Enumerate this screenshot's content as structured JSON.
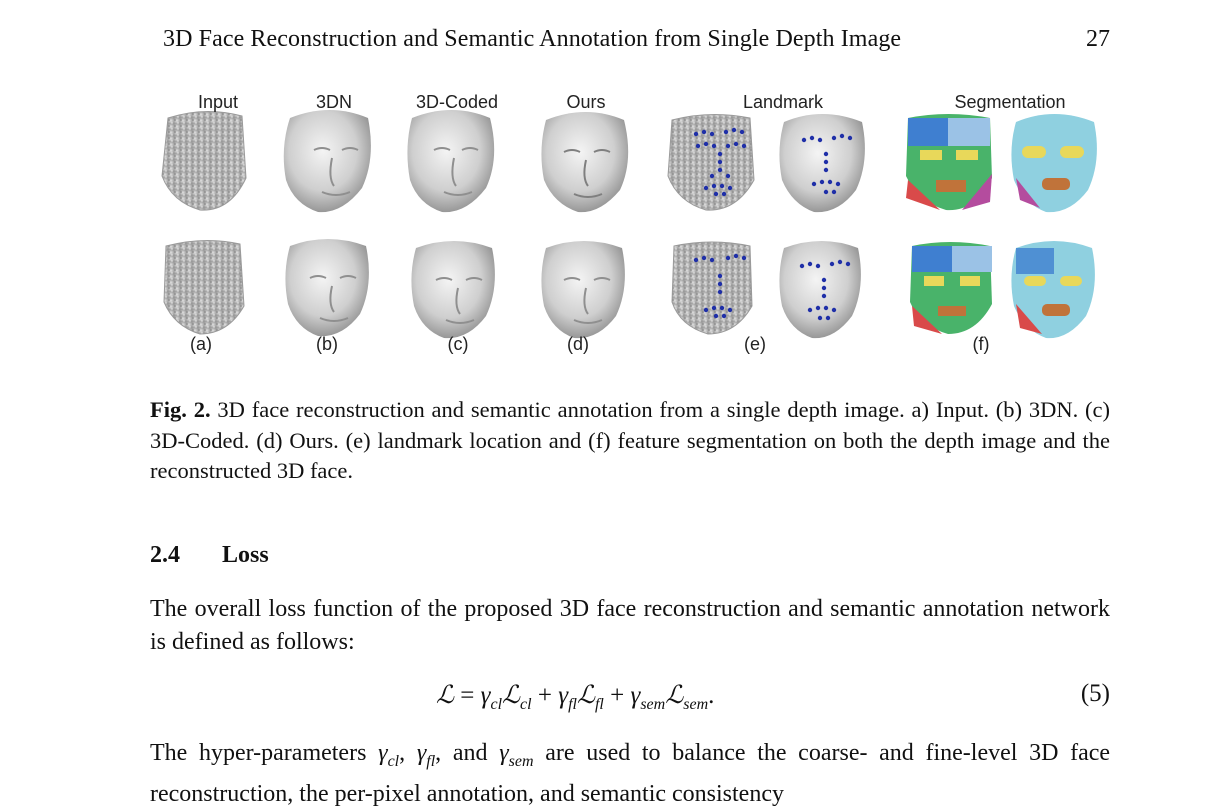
{
  "header": {
    "running_title": "3D Face Reconstruction and Semantic Annotation from Single Depth Image",
    "page_number": "27"
  },
  "figure": {
    "column_headers": [
      "Input",
      "3DN",
      "3D-Coded",
      "Ours",
      "Landmark",
      "Segmentation"
    ],
    "sub_labels": [
      "(a)",
      "(b)",
      "(c)",
      "(d)",
      "(e)",
      "(f)"
    ],
    "colors": {
      "face_gray": "#cfcfcf",
      "face_shadow": "#8a8a8a",
      "landmark_dot": "#1f2fa8",
      "segment_palette": [
        "#3f7fd0",
        "#e8d85a",
        "#49b36a",
        "#d94a4a",
        "#8fd0e0",
        "#b44c9e",
        "#9bc2e6",
        "#c0733a"
      ]
    }
  },
  "caption": {
    "label": "Fig. 2.",
    "text": "3D face reconstruction and semantic annotation from a single depth image. a) Input. (b) 3DN. (c) 3D-Coded. (d) Ours. (e) landmark location and (f) feature segmentation on both the depth image and the reconstructed 3D face."
  },
  "section": {
    "number": "2.4",
    "title": "Loss"
  },
  "paragraph1": "The overall loss function of the proposed 3D face reconstruction and semantic annotation network is defined as follows:",
  "equation": {
    "number": "(5)"
  },
  "paragraph2": {
    "lead": "The hyper-parameters",
    "sep1": ",",
    "sep2": ", and",
    "rest": "are used to balance the coarse- and fine-level 3D face reconstruction, the per-pixel annotation, and semantic consistency"
  }
}
